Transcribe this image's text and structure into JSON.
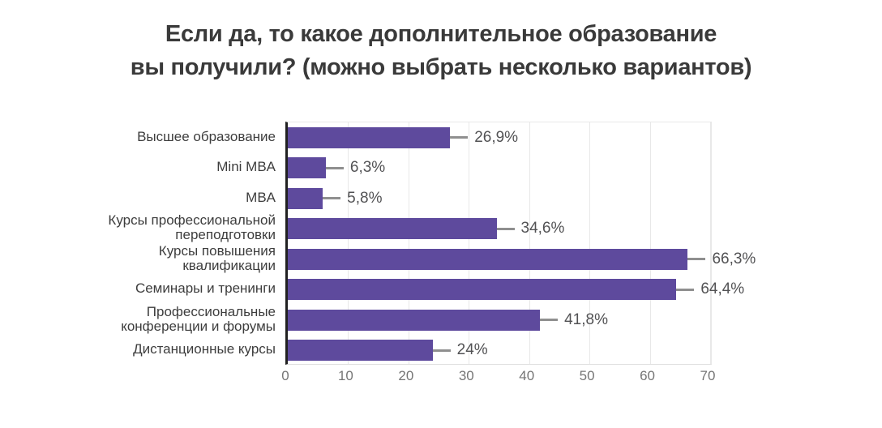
{
  "header": {
    "title_lines": [
      "Если да, то какое дополнительное образование",
      "вы получили? (можно выбрать несколько вариантов)"
    ]
  },
  "chart_data": {
    "type": "bar",
    "orientation": "horizontal",
    "title": "Если да, то какое дополнительное образование вы получили? (можно выбрать несколько вариантов)",
    "categories": [
      "Высшее образование",
      "Mini MBA",
      "MBA",
      "Курсы профессиональной переподготовки",
      "Курсы повышения квалификации",
      "Семинары и тренинги",
      "Профессиональные конференции и форумы",
      "Дистанционные курсы"
    ],
    "values": [
      26.9,
      6.3,
      5.8,
      34.6,
      66.3,
      64.4,
      41.8,
      24
    ],
    "value_labels": [
      "26,9%",
      "6,3%",
      "5,8%",
      "34,6%",
      "66,3%",
      "64,4%",
      "41,8%",
      "24%"
    ],
    "x_ticks": [
      0,
      10,
      20,
      30,
      40,
      50,
      60,
      70
    ],
    "xlim": [
      0,
      70
    ],
    "xlabel": "",
    "ylabel": "",
    "grid": "vertical-only",
    "legend_position": "none"
  },
  "colors": {
    "bar": "#5e4a9d",
    "axis_line": "#212121",
    "gridline": "#e8e8e8",
    "tick_label": "#757575",
    "category_label": "#3d3d3d",
    "value_label": "#525254",
    "leader_line": "#8f8f8f",
    "title": "#3a3a3a",
    "background": "#ffffff"
  }
}
